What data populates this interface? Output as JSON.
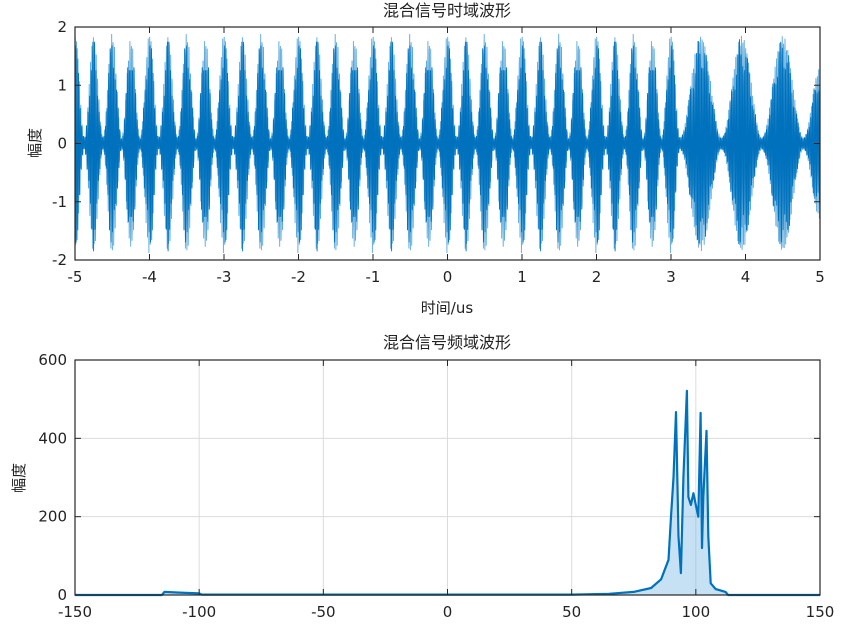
{
  "chart_data": [
    {
      "type": "line",
      "title": "混合信号时域波形",
      "xlabel": "时间/us",
      "ylabel": "幅度",
      "xlim": [
        -5,
        5
      ],
      "ylim": [
        -2,
        2
      ],
      "xticks": [
        "-5",
        "-4",
        "-3",
        "-2",
        "-1",
        "0",
        "1",
        "2",
        "3",
        "4",
        "5"
      ],
      "yticks": [
        "-2",
        "-1",
        "0",
        "1",
        "2"
      ],
      "grid": false,
      "color": "#0072BD",
      "series": [
        {
          "envelope": [
            [
              -5,
              1.9
            ],
            [
              -4.875,
              0.1
            ],
            [
              -4.75,
              1.85
            ],
            [
              -4.625,
              0.1
            ],
            [
              -4.5,
              1.9
            ],
            [
              -4.375,
              0.1
            ],
            [
              -4.25,
              1.8
            ],
            [
              -4.125,
              0.1
            ],
            [
              -4,
              1.9
            ],
            [
              -3.875,
              0.1
            ],
            [
              -3.75,
              1.85
            ],
            [
              -3.625,
              0.1
            ],
            [
              -3.5,
              1.9
            ],
            [
              -3.375,
              0.1
            ],
            [
              -3.25,
              1.8
            ],
            [
              -3.125,
              0.1
            ],
            [
              -3,
              1.9
            ],
            [
              -2.875,
              0.1
            ],
            [
              -2.75,
              1.85
            ],
            [
              -2.625,
              0.1
            ],
            [
              -2.5,
              1.9
            ],
            [
              -2.375,
              0.1
            ],
            [
              -2.25,
              1.8
            ],
            [
              -2.125,
              0.1
            ],
            [
              -2,
              1.9
            ],
            [
              -1.875,
              0.1
            ],
            [
              -1.75,
              1.85
            ],
            [
              -1.625,
              0.1
            ],
            [
              -1.5,
              1.9
            ],
            [
              -1.375,
              0.1
            ],
            [
              -1.25,
              1.8
            ],
            [
              -1.125,
              0.1
            ],
            [
              -1,
              1.9
            ],
            [
              -0.875,
              0.1
            ],
            [
              -0.75,
              1.85
            ],
            [
              -0.625,
              0.1
            ],
            [
              -0.5,
              1.9
            ],
            [
              -0.375,
              0.1
            ],
            [
              -0.25,
              1.8
            ],
            [
              -0.125,
              0.1
            ],
            [
              0,
              1.9
            ],
            [
              0.125,
              0.1
            ],
            [
              0.25,
              1.85
            ],
            [
              0.375,
              0.1
            ],
            [
              0.5,
              1.9
            ],
            [
              0.625,
              0.1
            ],
            [
              0.75,
              1.8
            ],
            [
              0.875,
              0.1
            ],
            [
              1,
              1.9
            ],
            [
              1.125,
              0.1
            ],
            [
              1.25,
              1.85
            ],
            [
              1.375,
              0.1
            ],
            [
              1.5,
              1.9
            ],
            [
              1.625,
              0.1
            ],
            [
              1.75,
              1.8
            ],
            [
              1.875,
              0.1
            ],
            [
              2,
              1.9
            ],
            [
              2.125,
              0.1
            ],
            [
              2.25,
              1.85
            ],
            [
              2.375,
              0.1
            ],
            [
              2.5,
              1.9
            ],
            [
              2.625,
              0.1
            ],
            [
              2.75,
              1.8
            ],
            [
              2.875,
              0.1
            ],
            [
              3.0,
              1.9
            ],
            [
              3.12,
              0.1
            ],
            [
              3.4,
              1.85
            ],
            [
              3.68,
              0.1
            ],
            [
              3.95,
              1.85
            ],
            [
              4.22,
              0.1
            ],
            [
              4.5,
              1.85
            ],
            [
              4.78,
              0.1
            ],
            [
              5,
              1.3
            ]
          ]
        }
      ]
    },
    {
      "type": "line",
      "title": "混合信号频域波形",
      "xlabel": "",
      "ylabel": "幅度",
      "xlim": [
        -150,
        150
      ],
      "ylim": [
        0,
        600
      ],
      "xticks": [
        "-150",
        "-100",
        "-50",
        "0",
        "50",
        "100",
        "150"
      ],
      "yticks": [
        "0",
        "200",
        "400",
        "600"
      ],
      "grid": true,
      "color": "#0072BD",
      "series": [
        {
          "points": [
            [
              -150,
              0
            ],
            [
              -115,
              0
            ],
            [
              -114,
              8
            ],
            [
              -108,
              6
            ],
            [
              -100,
              4
            ],
            [
              -99,
              1
            ],
            [
              50,
              1
            ],
            [
              65,
              3
            ],
            [
              75,
              8
            ],
            [
              82,
              18
            ],
            [
              86,
              40
            ],
            [
              89,
              90
            ],
            [
              90,
              200
            ],
            [
              91,
              300
            ],
            [
              92,
              467
            ],
            [
              93,
              150
            ],
            [
              94,
              56
            ],
            [
              95,
              300
            ],
            [
              96.4,
              521
            ],
            [
              97,
              250
            ],
            [
              98,
              230
            ],
            [
              99,
              260
            ],
            [
              100,
              230
            ],
            [
              101,
              200
            ],
            [
              101.9,
              465
            ],
            [
              102.5,
              120
            ],
            [
              103,
              250
            ],
            [
              104.3,
              419
            ],
            [
              105,
              150
            ],
            [
              106,
              30
            ],
            [
              108,
              15
            ],
            [
              112,
              8
            ],
            [
              113,
              0
            ],
            [
              150,
              0
            ]
          ]
        }
      ]
    }
  ]
}
